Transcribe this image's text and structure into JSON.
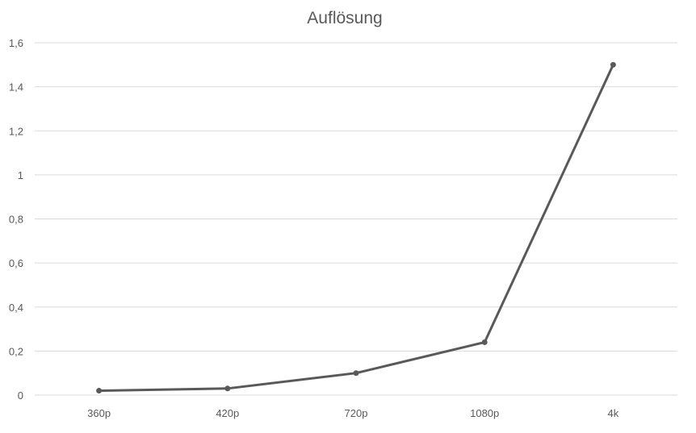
{
  "chart_data": {
    "type": "line",
    "title": "Auflösung",
    "xlabel": "",
    "ylabel": "",
    "categories": [
      "360p",
      "420p",
      "720p",
      "1080p",
      "4k"
    ],
    "series": [
      {
        "values": [
          0.02,
          0.03,
          0.1,
          0.24,
          1.5
        ]
      }
    ],
    "ylim": [
      0,
      1.6
    ],
    "yticks": [
      0,
      0.2,
      0.4,
      0.6,
      0.8,
      1,
      1.2,
      1.4,
      1.6
    ],
    "ytick_labels": [
      "0",
      "0,2",
      "0,4",
      "0,6",
      "0,8",
      "1",
      "1,2",
      "1,4",
      "1,6"
    ],
    "grid": true,
    "legend": "none",
    "colors": {
      "series": "#595959"
    }
  }
}
